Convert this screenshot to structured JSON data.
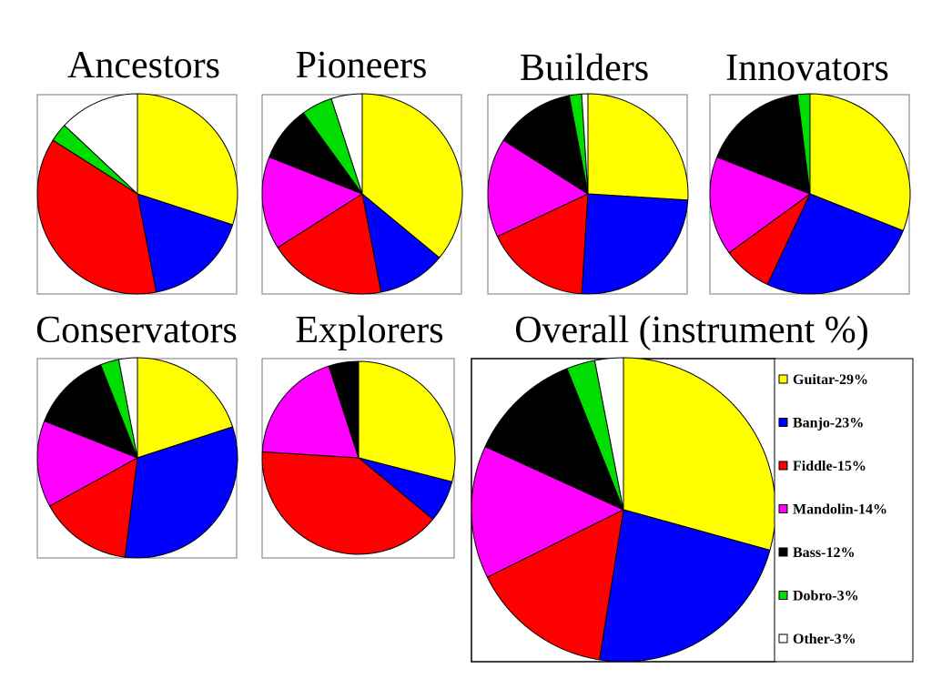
{
  "chart_data": [
    {
      "type": "pie",
      "title": "Ancestors",
      "slices": [
        {
          "label": "Guitar",
          "value": 30
        },
        {
          "label": "Banjo",
          "value": 17
        },
        {
          "label": "Fiddle",
          "value": 37
        },
        {
          "label": "Mandolin",
          "value": 0
        },
        {
          "label": "Bass",
          "value": 0
        },
        {
          "label": "Dobro",
          "value": 3
        },
        {
          "label": "Other",
          "value": 13
        }
      ]
    },
    {
      "type": "pie",
      "title": "Pioneers",
      "slices": [
        {
          "label": "Guitar",
          "value": 36
        },
        {
          "label": "Banjo",
          "value": 11
        },
        {
          "label": "Fiddle",
          "value": 19
        },
        {
          "label": "Mandolin",
          "value": 15
        },
        {
          "label": "Bass",
          "value": 9
        },
        {
          "label": "Dobro",
          "value": 5
        },
        {
          "label": "Other",
          "value": 5
        }
      ]
    },
    {
      "type": "pie",
      "title": "Builders",
      "slices": [
        {
          "label": "Guitar",
          "value": 26
        },
        {
          "label": "Banjo",
          "value": 25
        },
        {
          "label": "Fiddle",
          "value": 17
        },
        {
          "label": "Mandolin",
          "value": 16
        },
        {
          "label": "Bass",
          "value": 13
        },
        {
          "label": "Dobro",
          "value": 2
        },
        {
          "label": "Other",
          "value": 1
        }
      ]
    },
    {
      "type": "pie",
      "title": "Innovators",
      "slices": [
        {
          "label": "Guitar",
          "value": 31
        },
        {
          "label": "Banjo",
          "value": 26
        },
        {
          "label": "Fiddle",
          "value": 8
        },
        {
          "label": "Mandolin",
          "value": 16
        },
        {
          "label": "Bass",
          "value": 17
        },
        {
          "label": "Dobro",
          "value": 2
        },
        {
          "label": "Other",
          "value": 0
        }
      ]
    },
    {
      "type": "pie",
      "title": "Conservators",
      "slices": [
        {
          "label": "Guitar",
          "value": 20
        },
        {
          "label": "Banjo",
          "value": 32
        },
        {
          "label": "Fiddle",
          "value": 15
        },
        {
          "label": "Mandolin",
          "value": 14
        },
        {
          "label": "Bass",
          "value": 13
        },
        {
          "label": "Dobro",
          "value": 3
        },
        {
          "label": "Other",
          "value": 3
        }
      ]
    },
    {
      "type": "pie",
      "title": "Explorers",
      "slices": [
        {
          "label": "Guitar",
          "value": 29
        },
        {
          "label": "Banjo",
          "value": 7
        },
        {
          "label": "Fiddle",
          "value": 40
        },
        {
          "label": "Mandolin",
          "value": 19
        },
        {
          "label": "Bass",
          "value": 5
        },
        {
          "label": "Dobro",
          "value": 0
        },
        {
          "label": "Other",
          "value": 0
        }
      ]
    },
    {
      "type": "pie",
      "title": "Overall (instrument %)",
      "slices": [
        {
          "label": "Guitar",
          "value": 29
        },
        {
          "label": "Banjo",
          "value": 23
        },
        {
          "label": "Fiddle",
          "value": 15
        },
        {
          "label": "Mandolin",
          "value": 14
        },
        {
          "label": "Bass",
          "value": 12
        },
        {
          "label": "Dobro",
          "value": 3
        },
        {
          "label": "Other",
          "value": 3
        }
      ],
      "legend_position": "right",
      "legend": [
        {
          "label": "Guitar-29%",
          "color": "#ffff00"
        },
        {
          "label": "Banjo-23%",
          "color": "#0000ff"
        },
        {
          "label": "Fiddle-15%",
          "color": "#ff0000"
        },
        {
          "label": "Mandolin-14%",
          "color": "#ff00ff"
        },
        {
          "label": "Bass-12%",
          "color": "#000000"
        },
        {
          "label": "Dobro-3%",
          "color": "#00dd00"
        },
        {
          "label": "Other-3%",
          "color": "#ffffff"
        }
      ]
    }
  ],
  "colors": {
    "Guitar": "#ffff00",
    "Banjo": "#0000ff",
    "Fiddle": "#ff0000",
    "Mandolin": "#ff00ff",
    "Bass": "#000000",
    "Dobro": "#00dd00",
    "Other": "#ffffff"
  }
}
